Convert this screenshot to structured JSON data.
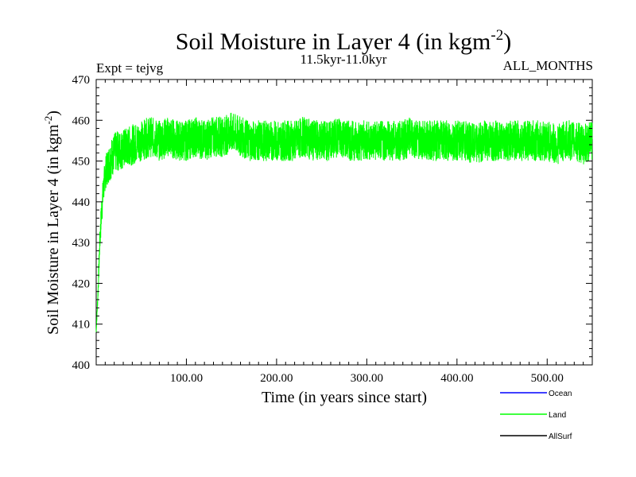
{
  "chart_data": {
    "type": "line",
    "title": "Soil Moisture in Layer 4 (in kgm",
    "title_sup": "-2",
    "title_close": ")",
    "expt_label": "Expt = tejvg",
    "subtitle": "11.5kyr-11.0kyr",
    "months_label": "ALL_MONTHS",
    "xlabel": "Time (in years since start)",
    "ylabel": "Soil Moisture in Layer 4 (in kgm",
    "ylabel_sup": "-2",
    "ylabel_close": ")",
    "xlim": [
      0,
      550
    ],
    "ylim": [
      400,
      470
    ],
    "x_ticks": [
      100,
      200,
      300,
      400,
      500
    ],
    "x_tick_labels": [
      "100.00",
      "200.00",
      "300.00",
      "400.00",
      "500.00"
    ],
    "y_ticks": [
      400,
      410,
      420,
      430,
      440,
      450,
      460,
      470
    ],
    "y_tick_labels": [
      "400",
      "410",
      "420",
      "430",
      "440",
      "450",
      "460",
      "470"
    ],
    "grid": false,
    "legend_position": "bottom-right",
    "series": [
      {
        "name": "Ocean",
        "color": "#0000ff",
        "x": [],
        "values": []
      },
      {
        "name": "Land",
        "color": "#00ff00",
        "x": [
          0,
          2,
          4,
          6,
          8,
          10,
          15,
          20,
          30,
          40,
          50,
          60,
          70,
          80,
          90,
          100,
          110,
          120,
          130,
          140,
          150,
          160,
          170,
          180,
          190,
          200,
          210,
          220,
          230,
          240,
          250,
          260,
          270,
          280,
          290,
          300,
          310,
          320,
          330,
          340,
          350,
          360,
          370,
          380,
          390,
          400,
          410,
          420,
          430,
          440,
          450,
          460,
          470,
          480,
          490,
          500,
          510,
          520,
          530,
          540,
          550
        ],
        "values": [
          408,
          418,
          430,
          438,
          443,
          447,
          450,
          452,
          453,
          454,
          455,
          456,
          455,
          456,
          455,
          455,
          456,
          455,
          456,
          456,
          457,
          456,
          455,
          455,
          455,
          455,
          455,
          455,
          456,
          455,
          455,
          455,
          456,
          455,
          455,
          455,
          455,
          455,
          455,
          455,
          456,
          455,
          455,
          455,
          455,
          455,
          455,
          454,
          455,
          455,
          455,
          455,
          455,
          455,
          455,
          455,
          454,
          455,
          455,
          454,
          455
        ],
        "noise_band": [
          0,
          2,
          3,
          4,
          4,
          4,
          5,
          5,
          5,
          5,
          5,
          5,
          5,
          5,
          5,
          5,
          5,
          5,
          5,
          5,
          5,
          5,
          5,
          5,
          5,
          5,
          5,
          5,
          5,
          5,
          5,
          5,
          5,
          5,
          5,
          5,
          5,
          5,
          5,
          5,
          5,
          5,
          5,
          5,
          5,
          5,
          5,
          5,
          5,
          5,
          5,
          5,
          5,
          5,
          5,
          5,
          5,
          5,
          5,
          5,
          5
        ]
      },
      {
        "name": "AllSurf",
        "color": "#000000",
        "x": [],
        "values": []
      }
    ]
  }
}
